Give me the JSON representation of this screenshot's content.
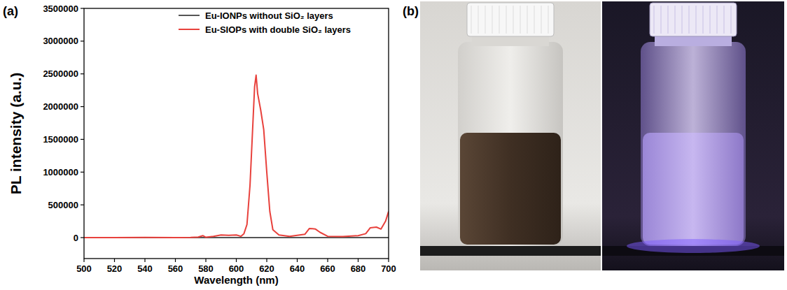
{
  "chart_data": {
    "type": "line",
    "annotations": [
      "(a)",
      "(b)"
    ],
    "x_label": "Wavelength (nm)",
    "y_label": "PL intensity (a.u.)",
    "xlim": [
      500,
      700
    ],
    "ylim": [
      -320000,
      3500000
    ],
    "xticks": [
      500,
      520,
      540,
      560,
      580,
      600,
      620,
      640,
      660,
      680,
      700
    ],
    "yticks": [
      0,
      500000,
      1000000,
      1500000,
      2000000,
      2500000,
      3000000,
      3500000
    ],
    "legend": "upper right",
    "series": [
      {
        "name": "Eu-IONPs without SiO₂ layers",
        "color": "#555555",
        "x": [
          500,
          700
        ],
        "values": [
          0,
          0
        ]
      },
      {
        "name": "Eu-SIOPs with double SiO₂ layers",
        "color": "#e8413c",
        "x": [
          500,
          520,
          540,
          560,
          570,
          575,
          578,
          580,
          585,
          590,
          595,
          600,
          603,
          605,
          607,
          609,
          611,
          612,
          613,
          614,
          616,
          618,
          620,
          622,
          624,
          628,
          635,
          645,
          648,
          650,
          652,
          655,
          660,
          670,
          680,
          685,
          688,
          692,
          695,
          698,
          700
        ],
        "values": [
          0,
          0,
          3000,
          0,
          2000,
          8000,
          30000,
          5000,
          20000,
          40000,
          35000,
          40000,
          20000,
          60000,
          200000,
          800000,
          1800000,
          2300000,
          2480000,
          2200000,
          1950000,
          1650000,
          1000000,
          400000,
          120000,
          40000,
          20000,
          50000,
          140000,
          135000,
          130000,
          80000,
          20000,
          15000,
          30000,
          60000,
          150000,
          160000,
          130000,
          250000,
          400000
        ]
      }
    ]
  }
}
